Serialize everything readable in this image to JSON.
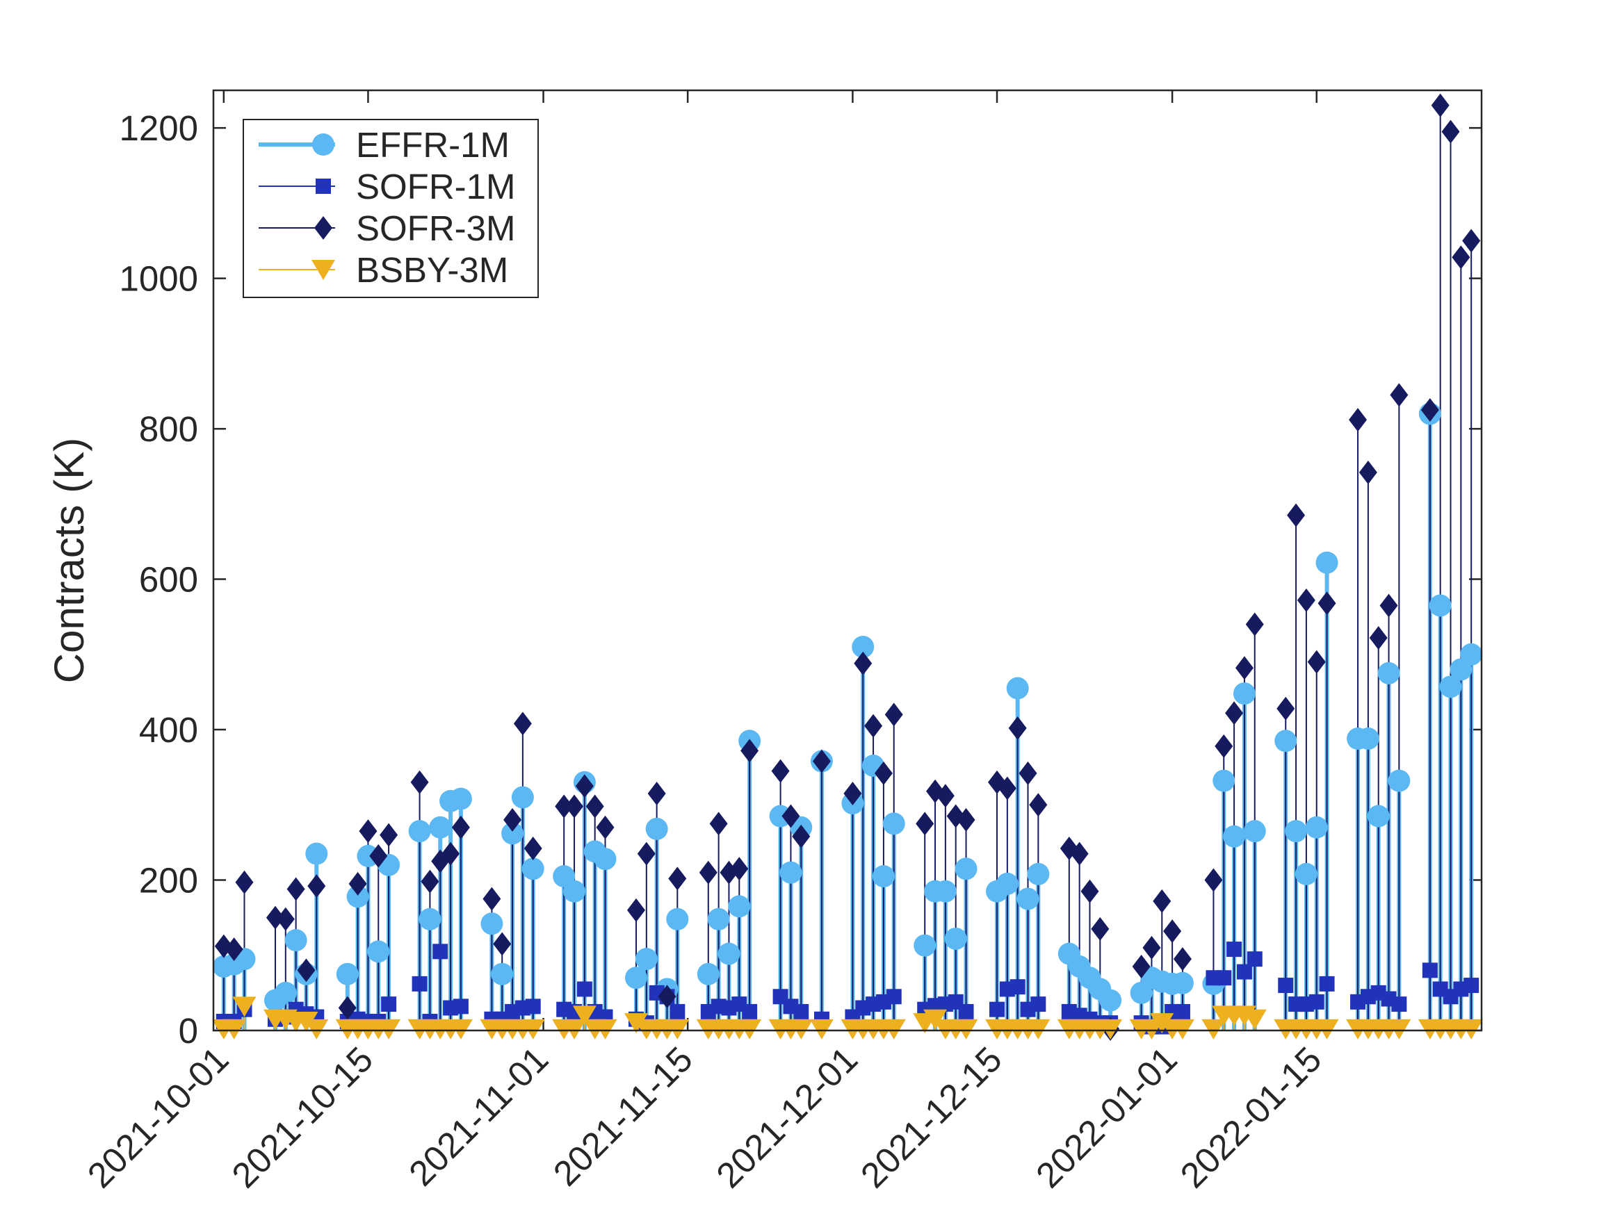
{
  "chart_data": {
    "type": "stem",
    "title": "",
    "xlabel": "",
    "ylabel": "Contracts (K)",
    "ylim": [
      0,
      1250
    ],
    "yticks": [
      0,
      200,
      400,
      600,
      800,
      1000,
      1200
    ],
    "xlim": [
      "2021-09-30",
      "2022-01-31"
    ],
    "xticks": [
      "2021-10-01",
      "2021-10-15",
      "2021-11-01",
      "2021-11-15",
      "2021-12-01",
      "2021-12-15",
      "2022-01-01",
      "2022-01-15"
    ],
    "grid": false,
    "legend_position": "top-left",
    "x": [
      "2021-10-01",
      "2021-10-02",
      "2021-10-03",
      "2021-10-06",
      "2021-10-07",
      "2021-10-08",
      "2021-10-09",
      "2021-10-10",
      "2021-10-13",
      "2021-10-14",
      "2021-10-15",
      "2021-10-16",
      "2021-10-17",
      "2021-10-20",
      "2021-10-21",
      "2021-10-22",
      "2021-10-23",
      "2021-10-24",
      "2021-10-27",
      "2021-10-28",
      "2021-10-29",
      "2021-10-30",
      "2021-10-31",
      "2021-11-03",
      "2021-11-04",
      "2021-11-05",
      "2021-11-06",
      "2021-11-07",
      "2021-11-10",
      "2021-11-11",
      "2021-11-12",
      "2021-11-13",
      "2021-11-14",
      "2021-11-17",
      "2021-11-18",
      "2021-11-19",
      "2021-11-20",
      "2021-11-21",
      "2021-11-24",
      "2021-11-25",
      "2021-11-26",
      "2021-11-28",
      "2021-12-01",
      "2021-12-02",
      "2021-12-03",
      "2021-12-04",
      "2021-12-05",
      "2021-12-08",
      "2021-12-09",
      "2021-12-10",
      "2021-12-11",
      "2021-12-12",
      "2021-12-15",
      "2021-12-16",
      "2021-12-17",
      "2021-12-18",
      "2021-12-19",
      "2021-12-22",
      "2021-12-23",
      "2021-12-24",
      "2021-12-25",
      "2021-12-26",
      "2021-12-29",
      "2021-12-30",
      "2021-12-31",
      "2022-01-01",
      "2022-01-02",
      "2022-01-05",
      "2022-01-06",
      "2022-01-07",
      "2022-01-08",
      "2022-01-09",
      "2022-01-12",
      "2022-01-13",
      "2022-01-14",
      "2022-01-15",
      "2022-01-16",
      "2022-01-19",
      "2022-01-20",
      "2022-01-21",
      "2022-01-22",
      "2022-01-23",
      "2022-01-26",
      "2022-01-27",
      "2022-01-28",
      "2022-01-29",
      "2022-01-30"
    ],
    "series": [
      {
        "name": "EFFR-1M",
        "color": "#5cb8f2",
        "marker": "circle",
        "values": [
          85,
          88,
          95,
          40,
          50,
          120,
          75,
          235,
          75,
          178,
          232,
          105,
          220,
          265,
          148,
          270,
          305,
          308,
          142,
          75,
          262,
          310,
          215,
          205,
          185,
          330,
          238,
          228,
          70,
          95,
          268,
          55,
          148,
          75,
          148,
          102,
          165,
          385,
          285,
          210,
          270,
          358,
          302,
          510,
          352,
          205,
          275,
          113,
          185,
          185,
          122,
          215,
          185,
          195,
          455,
          175,
          208,
          102,
          85,
          70,
          55,
          40,
          50,
          70,
          65,
          62,
          63,
          62,
          332,
          258,
          448,
          265,
          385,
          265,
          208,
          270,
          622,
          388,
          388,
          285,
          475,
          332,
          820,
          565,
          457,
          480,
          500
        ]
      },
      {
        "name": "SOFR-1M",
        "color": "#2233bb",
        "marker": "square",
        "values": [
          12,
          12,
          28,
          15,
          18,
          28,
          22,
          18,
          12,
          15,
          12,
          12,
          35,
          62,
          12,
          105,
          30,
          32,
          15,
          15,
          25,
          30,
          32,
          28,
          25,
          55,
          25,
          18,
          15,
          10,
          50,
          45,
          25,
          25,
          32,
          30,
          35,
          25,
          45,
          32,
          25,
          15,
          18,
          30,
          35,
          38,
          45,
          28,
          33,
          35,
          38,
          25,
          28,
          55,
          58,
          28,
          35,
          25,
          20,
          15,
          10,
          10,
          10,
          5,
          5,
          25,
          25,
          70,
          70,
          108,
          78,
          95,
          60,
          35,
          35,
          38,
          62,
          38,
          45,
          50,
          42,
          35,
          80,
          55,
          45,
          55,
          60
        ]
      },
      {
        "name": "SOFR-3M",
        "color": "#161a5e",
        "marker": "diamond",
        "values": [
          112,
          108,
          197,
          150,
          148,
          188,
          80,
          192,
          30,
          195,
          265,
          232,
          260,
          330,
          198,
          225,
          235,
          270,
          175,
          115,
          280,
          408,
          242,
          298,
          298,
          325,
          298,
          270,
          160,
          235,
          315,
          45,
          202,
          210,
          275,
          210,
          215,
          372,
          345,
          285,
          258,
          358,
          315,
          488,
          405,
          342,
          420,
          275,
          318,
          312,
          285,
          280,
          330,
          322,
          402,
          342,
          300,
          242,
          235,
          185,
          135,
          2,
          85,
          110,
          172,
          132,
          95,
          200,
          378,
          422,
          482,
          540,
          428,
          685,
          572,
          490,
          568,
          812,
          742,
          522,
          565,
          845,
          825,
          1230,
          1195,
          1028,
          1050
        ]
      },
      {
        "name": "BSBY-3M",
        "color": "#edb120",
        "marker": "triangle-down",
        "values": [
          2,
          2,
          32,
          15,
          15,
          12,
          12,
          2,
          2,
          2,
          2,
          2,
          2,
          2,
          2,
          2,
          2,
          2,
          2,
          2,
          2,
          2,
          2,
          2,
          2,
          20,
          2,
          2,
          10,
          2,
          2,
          2,
          2,
          2,
          2,
          2,
          2,
          2,
          2,
          2,
          2,
          2,
          2,
          2,
          2,
          2,
          2,
          10,
          15,
          2,
          2,
          2,
          2,
          2,
          2,
          2,
          2,
          2,
          2,
          2,
          2,
          2,
          2,
          2,
          10,
          2,
          2,
          2,
          20,
          20,
          20,
          15,
          2,
          2,
          2,
          2,
          2,
          2,
          2,
          2,
          2,
          2,
          2,
          2,
          2,
          2,
          2
        ]
      }
    ]
  }
}
